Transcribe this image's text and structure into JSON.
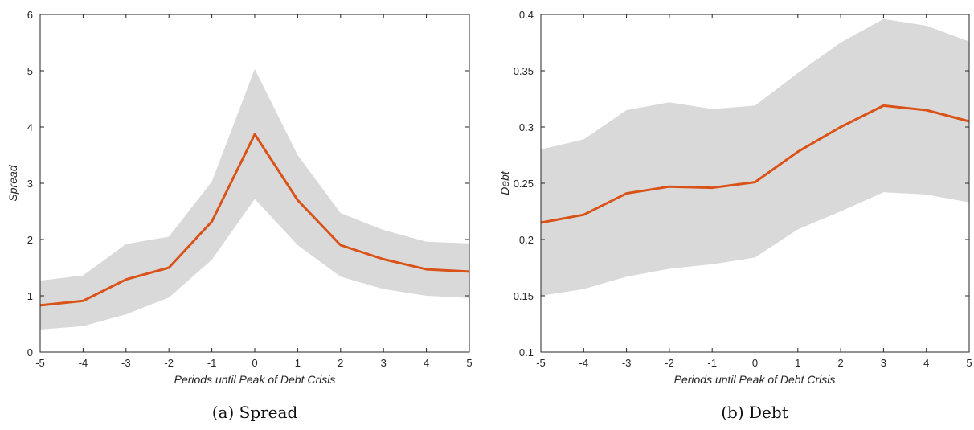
{
  "chart_data": [
    {
      "type": "line",
      "caption": "(a) Spread",
      "xlabel": "Periods until Peak of Debt Crisis",
      "ylabel": "Spread",
      "x": [
        -5,
        -4,
        -3,
        -2,
        -1,
        0,
        1,
        2,
        3,
        4,
        5
      ],
      "xlim": [
        -5,
        5
      ],
      "ylim": [
        0,
        6
      ],
      "yticks": [
        0,
        1,
        2,
        3,
        4,
        5,
        6
      ],
      "ytick_labels": [
        "0",
        "1",
        "2",
        "3",
        "4",
        "5",
        "6"
      ],
      "series": [
        {
          "kind": "line",
          "color": "#d95319",
          "values": [
            0.83,
            0.91,
            1.29,
            1.5,
            2.32,
            3.87,
            2.7,
            1.9,
            1.65,
            1.47,
            1.43
          ]
        }
      ],
      "band": {
        "color": "#d9d9d9",
        "lower": [
          0.4,
          0.46,
          0.67,
          0.97,
          1.64,
          2.72,
          1.9,
          1.34,
          1.12,
          1.0,
          0.96
        ],
        "upper": [
          1.27,
          1.36,
          1.92,
          2.05,
          3.03,
          5.03,
          3.5,
          2.47,
          2.17,
          1.96,
          1.93
        ]
      },
      "grid": false
    },
    {
      "type": "line",
      "caption": "(b) Debt",
      "xlabel": "Periods until Peak of Debt Crisis",
      "ylabel": "Debt",
      "x": [
        -5,
        -4,
        -3,
        -2,
        -1,
        0,
        1,
        2,
        3,
        4,
        5
      ],
      "xlim": [
        -5,
        5
      ],
      "ylim": [
        0.1,
        0.4
      ],
      "yticks": [
        0.1,
        0.15,
        0.2,
        0.25,
        0.3,
        0.35,
        0.4
      ],
      "ytick_labels": [
        "0.1",
        "0.15",
        "0.2",
        "0.25",
        "0.3",
        "0.35",
        "0.4"
      ],
      "series": [
        {
          "kind": "line",
          "color": "#d95319",
          "values": [
            0.215,
            0.222,
            0.241,
            0.247,
            0.246,
            0.251,
            0.278,
            0.3,
            0.319,
            0.315,
            0.305
          ]
        }
      ],
      "band": {
        "color": "#d9d9d9",
        "lower": [
          0.15,
          0.156,
          0.167,
          0.174,
          0.178,
          0.184,
          0.209,
          0.225,
          0.242,
          0.24,
          0.233
        ],
        "upper": [
          0.28,
          0.289,
          0.315,
          0.322,
          0.316,
          0.319,
          0.348,
          0.375,
          0.396,
          0.39,
          0.376
        ]
      },
      "grid": false
    }
  ]
}
